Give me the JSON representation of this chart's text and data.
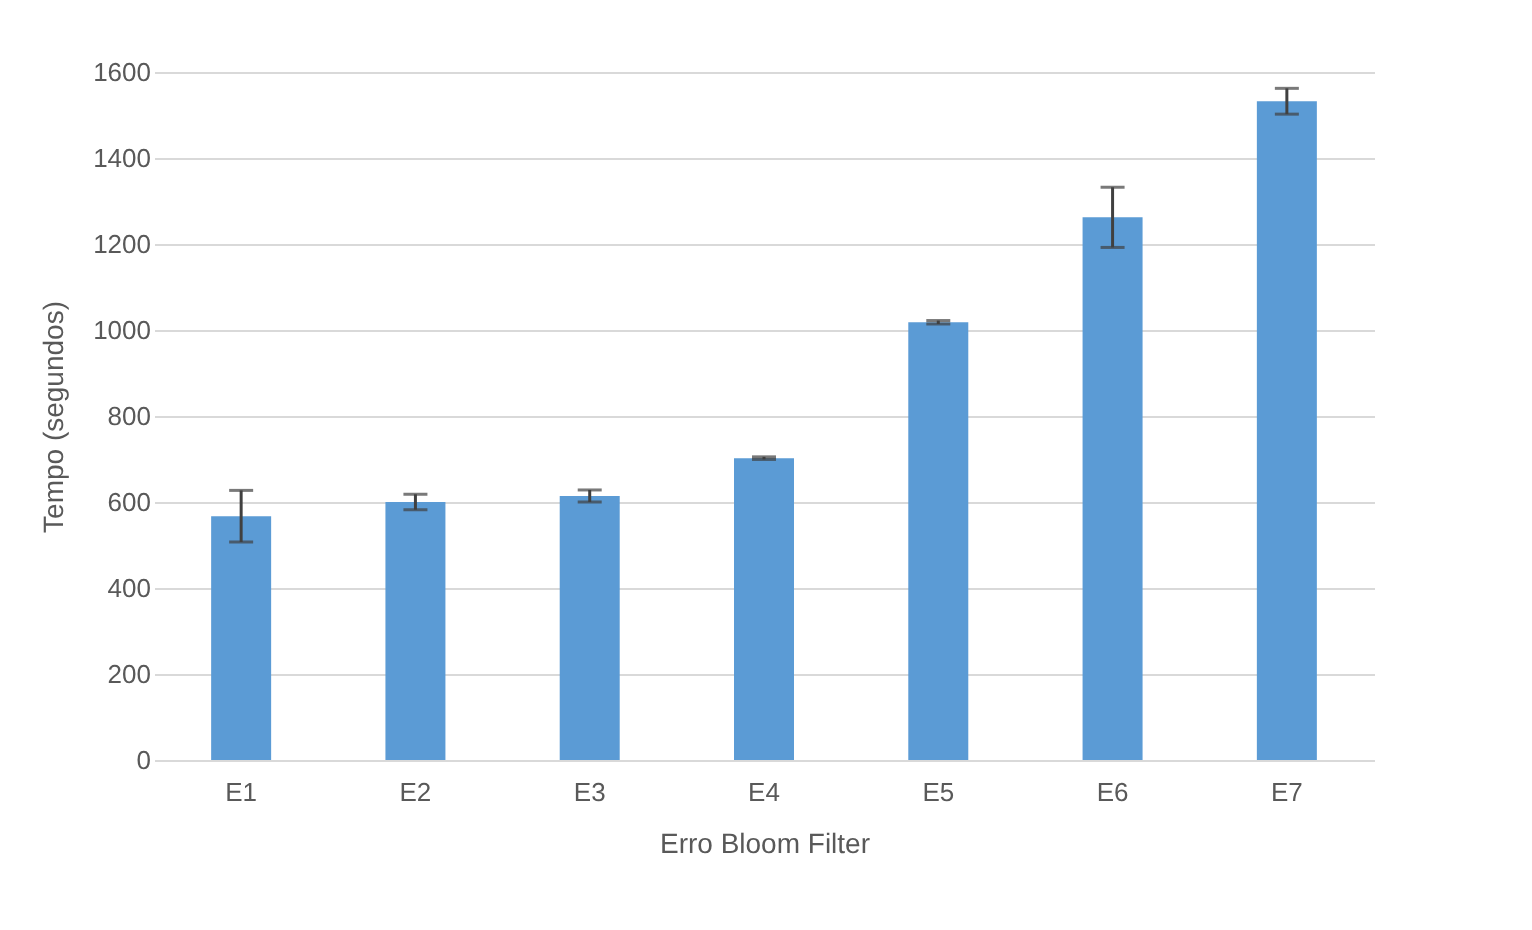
{
  "chart_data": {
    "type": "bar",
    "xlabel": "Erro Bloom Filter",
    "ylabel": "Tempo  (segundos)",
    "categories": [
      "E1",
      "E2",
      "E3",
      "E4",
      "E5",
      "E6",
      "E7"
    ],
    "values": [
      567,
      600,
      614,
      702,
      1018,
      1262,
      1532
    ],
    "errors": [
      60,
      18,
      14,
      3,
      4,
      70,
      30
    ],
    "color": "#5b9bd5",
    "ylim": [
      0,
      1600
    ],
    "yticks": [
      0,
      200,
      400,
      600,
      800,
      1000,
      1200,
      1400,
      1600
    ],
    "grid": "y"
  }
}
